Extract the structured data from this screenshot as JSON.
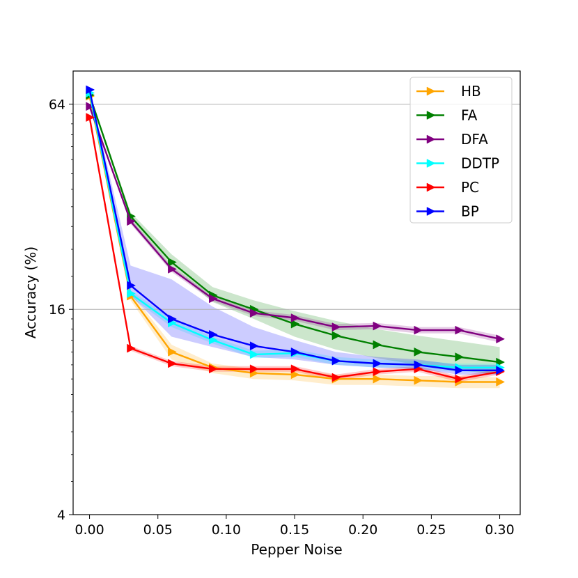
{
  "chart_data": {
    "type": "line",
    "title": "",
    "xlabel": "Pepper Noise",
    "ylabel": "Accuracy (%)",
    "yscale": "log2",
    "xlim": [
      -0.012,
      0.315
    ],
    "ylim": [
      4,
      80
    ],
    "x": [
      0.0,
      0.03,
      0.06,
      0.09,
      0.12,
      0.15,
      0.18,
      0.21,
      0.24,
      0.27,
      0.3
    ],
    "xticks": [
      "0.00",
      "0.05",
      "0.10",
      "0.15",
      "0.20",
      "0.25",
      "0.30"
    ],
    "yticks": [
      "4",
      "16",
      "64"
    ],
    "grid_y": [
      16,
      64
    ],
    "legend_position": "top-right",
    "series": [
      {
        "name": "HB",
        "color": "#ffa500",
        "values": [
          67.5,
          17.5,
          12.0,
          10.8,
          10.4,
          10.3,
          10.0,
          10.0,
          9.9,
          9.8,
          9.8
        ],
        "band_low": [
          66.5,
          17.0,
          11.4,
          10.4,
          10.0,
          9.9,
          9.6,
          9.6,
          9.5,
          9.4,
          9.4
        ],
        "band_high": [
          68.5,
          18.0,
          12.6,
          11.1,
          10.7,
          10.6,
          10.3,
          10.3,
          10.2,
          10.2,
          10.1
        ]
      },
      {
        "name": "FA",
        "color": "#008000",
        "values": [
          68.0,
          30.0,
          22.0,
          17.6,
          16.0,
          14.5,
          13.4,
          12.6,
          12.0,
          11.6,
          11.2
        ],
        "band_low": [
          67.0,
          29.2,
          21.2,
          16.8,
          15.0,
          13.3,
          12.2,
          11.5,
          11.0,
          10.6,
          10.3
        ],
        "band_high": [
          69.0,
          30.8,
          23.2,
          18.6,
          17.0,
          15.8,
          14.8,
          14.0,
          13.4,
          12.9,
          12.4
        ]
      },
      {
        "name": "DFA",
        "color": "#800080",
        "values": [
          63.0,
          29.0,
          21.0,
          17.2,
          15.6,
          15.1,
          14.2,
          14.3,
          13.9,
          13.9,
          13.1
        ],
        "band_low": [
          62.5,
          28.5,
          20.6,
          16.9,
          15.3,
          14.8,
          13.9,
          14.0,
          13.6,
          13.6,
          12.8
        ],
        "band_high": [
          63.5,
          29.5,
          21.4,
          17.5,
          15.9,
          15.4,
          14.5,
          14.6,
          14.2,
          14.2,
          13.4
        ]
      },
      {
        "name": "DDTP",
        "color": "#00ffff",
        "values": [
          69.0,
          17.8,
          14.6,
          13.0,
          11.8,
          11.9,
          11.3,
          11.1,
          11.0,
          10.8,
          10.8
        ],
        "band_low": [
          68.5,
          17.4,
          14.2,
          12.7,
          11.5,
          11.6,
          11.0,
          10.8,
          10.7,
          10.5,
          10.5
        ],
        "band_high": [
          69.5,
          18.2,
          15.0,
          13.3,
          12.1,
          12.2,
          11.6,
          11.4,
          11.3,
          11.1,
          11.1
        ]
      },
      {
        "name": "PC",
        "color": "#ff0000",
        "values": [
          58.5,
          12.3,
          11.1,
          10.7,
          10.7,
          10.7,
          10.1,
          10.5,
          10.7,
          10.0,
          10.5
        ],
        "band_low": [
          58.0,
          12.1,
          10.9,
          10.5,
          10.5,
          10.5,
          9.9,
          10.3,
          10.5,
          9.8,
          10.3
        ],
        "band_high": [
          59.0,
          12.5,
          11.3,
          10.9,
          10.9,
          10.9,
          10.3,
          10.7,
          10.9,
          10.2,
          10.7
        ]
      },
      {
        "name": "BP",
        "color": "#0000ff",
        "values": [
          70.5,
          18.8,
          15.0,
          13.5,
          12.5,
          12.0,
          11.3,
          11.1,
          11.0,
          10.6,
          10.6
        ],
        "band_low": [
          70.0,
          17.6,
          13.3,
          12.4,
          11.6,
          11.4,
          11.0,
          10.8,
          10.7,
          10.3,
          10.3
        ],
        "band_high": [
          71.0,
          21.5,
          19.6,
          16.3,
          14.2,
          13.0,
          12.0,
          11.6,
          11.4,
          11.0,
          11.0
        ]
      }
    ]
  }
}
